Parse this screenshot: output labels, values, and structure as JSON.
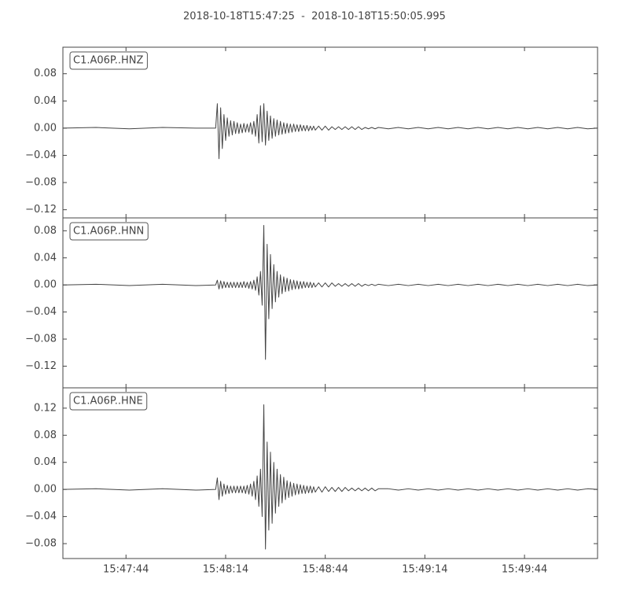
{
  "chart_data": [
    {
      "type": "line",
      "title": "2018-10-18T15:47:25  -  2018-10-18T15:50:05.995",
      "legend": "upper left",
      "x": [
        56845,
        56855,
        56865,
        56875,
        56885,
        56891,
        56891.5,
        56892,
        56892.5,
        56893,
        56893.5,
        56894,
        56894.5,
        56895,
        56895.5,
        56896,
        56896.5,
        56897,
        56897.5,
        56898,
        56898.5,
        56899,
        56899.5,
        56900,
        56900.5,
        56901,
        56901.5,
        56902,
        56902.5,
        56903,
        56903.5,
        56904,
        56904.5,
        56905,
        56905.5,
        56906,
        56906.5,
        56907,
        56907.5,
        56908,
        56908.5,
        56909,
        56909.5,
        56910,
        56910.5,
        56911,
        56911.5,
        56912,
        56912.5,
        56913,
        56913.5,
        56914,
        56914.5,
        56915,
        56915.5,
        56916,
        56916.5,
        56917,
        56917.5,
        56918,
        56918.5,
        56919,
        56919.5,
        56920,
        56920.5,
        56921,
        56922,
        56923,
        56924,
        56925,
        56926,
        56927,
        56928,
        56929,
        56930,
        56931,
        56932,
        56933,
        56934,
        56935,
        56936,
        56937,
        56938,
        56939,
        56940,
        56943,
        56946,
        56949,
        56952,
        56955,
        56958,
        56961,
        56964,
        56967,
        56970,
        56973,
        56976,
        56979,
        56982,
        56985,
        56988,
        56991,
        56994,
        56997,
        57000,
        57003,
        57005.995
      ],
      "series": [
        {
          "name": "C1.A06P..HNZ",
          "color": "#444444",
          "values": [
            0,
            0.001,
            -0.001,
            0.001,
            0,
            0,
            0.036,
            -0.045,
            0.03,
            -0.03,
            0.02,
            -0.018,
            0.015,
            -0.012,
            0.011,
            -0.01,
            0.01,
            -0.008,
            0.008,
            -0.008,
            0.006,
            -0.007,
            0.007,
            -0.006,
            0.006,
            -0.006,
            0.008,
            -0.009,
            0.01,
            -0.012,
            0.02,
            -0.022,
            0.033,
            -0.02,
            0.036,
            -0.025,
            0.025,
            -0.018,
            0.018,
            -0.015,
            0.014,
            -0.012,
            0.012,
            -0.01,
            0.01,
            -0.009,
            0.008,
            -0.008,
            0.007,
            -0.007,
            0.006,
            -0.006,
            0.006,
            -0.005,
            0.005,
            -0.005,
            0.005,
            -0.004,
            0.004,
            -0.004,
            0.004,
            -0.004,
            0.003,
            -0.003,
            0.003,
            -0.003,
            0.003,
            -0.003,
            0.003,
            -0.003,
            0.002,
            -0.002,
            0.002,
            -0.002,
            0.002,
            -0.002,
            0.002,
            -0.002,
            0.002,
            -0.002,
            0.001,
            -0.001,
            0.001,
            -0.001,
            0.001,
            -0.001,
            0.001,
            -0.001,
            0.001,
            -0.001,
            0.001,
            -0.001,
            0.001,
            -0.001,
            0.001,
            -0.001,
            0.001,
            -0.001,
            0.001,
            -0.001,
            0.001,
            -0.001,
            0.001,
            -0.001,
            0.001,
            -0.001,
            0
          ]
        }
      ],
      "xlim": [
        56845,
        57005.995
      ],
      "ylim": [
        -0.132,
        0.119
      ],
      "yticks": [
        {
          "value": -0.12,
          "label": "−0.12"
        },
        {
          "value": -0.08,
          "label": "−0.08"
        },
        {
          "value": -0.04,
          "label": "−0.04"
        },
        {
          "value": 0,
          "label": "0.00"
        },
        0.04,
        0.08
      ]
    },
    {
      "type": "line",
      "legend": "upper left",
      "x": [
        56845,
        56855,
        56865,
        56875,
        56885,
        56891,
        56891.5,
        56892,
        56892.5,
        56893,
        56893.5,
        56894,
        56894.5,
        56895,
        56895.5,
        56896,
        56896.5,
        56897,
        56897.5,
        56898,
        56898.5,
        56899,
        56899.5,
        56900,
        56900.5,
        56901,
        56901.5,
        56902,
        56902.5,
        56903,
        56903.5,
        56904,
        56904.5,
        56905,
        56905.5,
        56906,
        56906.5,
        56907,
        56907.5,
        56908,
        56908.5,
        56909,
        56909.5,
        56910,
        56910.5,
        56911,
        56911.5,
        56912,
        56912.5,
        56913,
        56913.5,
        56914,
        56914.5,
        56915,
        56915.5,
        56916,
        56916.5,
        56917,
        56917.5,
        56918,
        56918.5,
        56919,
        56919.5,
        56920,
        56920.5,
        56921,
        56922,
        56923,
        56924,
        56925,
        56926,
        56927,
        56928,
        56929,
        56930,
        56931,
        56932,
        56933,
        56934,
        56935,
        56936,
        56937,
        56938,
        56939,
        56940,
        56943,
        56946,
        56949,
        56952,
        56955,
        56958,
        56961,
        56964,
        56967,
        56970,
        56973,
        56976,
        56979,
        56982,
        56985,
        56988,
        56991,
        56994,
        56997,
        57000,
        57003,
        57005.995
      ],
      "series": [
        {
          "name": "C1.A06P..HNN",
          "color": "#444444",
          "values": [
            0,
            0.001,
            -0.001,
            0.001,
            -0.001,
            0,
            0.007,
            -0.006,
            0.006,
            -0.005,
            0.005,
            -0.004,
            0.004,
            -0.004,
            0.004,
            -0.004,
            0.004,
            -0.004,
            0.004,
            -0.004,
            0.004,
            -0.004,
            0.005,
            -0.004,
            0.004,
            -0.005,
            0.005,
            -0.006,
            0.007,
            -0.008,
            0.012,
            -0.015,
            0.02,
            -0.03,
            0.088,
            -0.11,
            0.06,
            -0.05,
            0.045,
            -0.035,
            0.03,
            -0.025,
            0.02,
            -0.018,
            0.015,
            -0.013,
            0.012,
            -0.01,
            0.01,
            -0.009,
            0.008,
            -0.007,
            0.007,
            -0.006,
            0.006,
            -0.006,
            0.005,
            -0.005,
            0.005,
            -0.004,
            0.004,
            -0.004,
            0.004,
            -0.004,
            0.003,
            -0.003,
            0.003,
            -0.003,
            0.003,
            -0.003,
            0.003,
            -0.002,
            0.002,
            -0.002,
            0.002,
            -0.002,
            0.002,
            -0.002,
            0.002,
            -0.002,
            0.001,
            -0.001,
            0.001,
            -0.001,
            0.001,
            -0.001,
            0.001,
            -0.001,
            0.001,
            -0.001,
            0.001,
            -0.001,
            0.001,
            -0.001,
            0.001,
            -0.001,
            0.001,
            -0.001,
            0.001,
            -0.001,
            0.001,
            -0.001,
            0.001,
            -0.001,
            0.001,
            -0.001,
            0
          ]
        }
      ],
      "xlim": [
        56845,
        57005.995
      ],
      "ylim": [
        -0.152,
        0.099
      ],
      "yticks": [
        {
          "value": -0.12,
          "label": "−0.12"
        },
        {
          "value": -0.08,
          "label": "−0.08"
        },
        {
          "value": -0.04,
          "label": "−0.04"
        },
        {
          "value": 0,
          "label": "0.00"
        },
        0.04,
        0.08
      ]
    },
    {
      "type": "line",
      "legend": "upper left",
      "x": [
        56845,
        56855,
        56865,
        56875,
        56885,
        56891,
        56891.5,
        56892,
        56892.5,
        56893,
        56893.5,
        56894,
        56894.5,
        56895,
        56895.5,
        56896,
        56896.5,
        56897,
        56897.5,
        56898,
        56898.5,
        56899,
        56899.5,
        56900,
        56900.5,
        56901,
        56901.5,
        56902,
        56902.5,
        56903,
        56903.5,
        56904,
        56904.5,
        56905,
        56905.5,
        56906,
        56906.5,
        56907,
        56907.5,
        56908,
        56908.5,
        56909,
        56909.5,
        56910,
        56910.5,
        56911,
        56911.5,
        56912,
        56912.5,
        56913,
        56913.5,
        56914,
        56914.5,
        56915,
        56915.5,
        56916,
        56916.5,
        56917,
        56917.5,
        56918,
        56918.5,
        56919,
        56919.5,
        56920,
        56920.5,
        56921,
        56922,
        56923,
        56924,
        56925,
        56926,
        56927,
        56928,
        56929,
        56930,
        56931,
        56932,
        56933,
        56934,
        56935,
        56936,
        56937,
        56938,
        56939,
        56940,
        56943,
        56946,
        56949,
        56952,
        56955,
        56958,
        56961,
        56964,
        56967,
        56970,
        56973,
        56976,
        56979,
        56982,
        56985,
        56988,
        56991,
        56994,
        56997,
        57000,
        57003,
        57005.995
      ],
      "series": [
        {
          "name": "C1.A06P..HNE",
          "color": "#444444",
          "values": [
            0,
            0.001,
            -0.001,
            0.001,
            -0.001,
            0,
            0.017,
            -0.015,
            0.012,
            -0.01,
            0.008,
            -0.007,
            0.006,
            -0.006,
            0.005,
            -0.005,
            0.005,
            -0.005,
            0.005,
            -0.005,
            0.005,
            -0.005,
            0.005,
            -0.006,
            0.006,
            -0.007,
            0.008,
            -0.01,
            0.012,
            -0.015,
            0.02,
            -0.025,
            0.03,
            -0.04,
            0.125,
            -0.088,
            0.07,
            -0.06,
            0.055,
            -0.05,
            0.04,
            -0.035,
            0.03,
            -0.025,
            0.022,
            -0.02,
            0.018,
            -0.015,
            0.013,
            -0.012,
            0.011,
            -0.01,
            0.009,
            -0.008,
            0.008,
            -0.007,
            0.007,
            -0.006,
            0.006,
            -0.006,
            0.005,
            -0.005,
            0.005,
            -0.005,
            0.004,
            -0.004,
            0.004,
            -0.004,
            0.004,
            -0.003,
            0.003,
            -0.003,
            0.003,
            -0.003,
            0.003,
            -0.002,
            0.002,
            -0.002,
            0.002,
            -0.002,
            0.002,
            -0.002,
            0.002,
            -0.002,
            0.001,
            0.001,
            -0.001,
            0.001,
            -0.001,
            0.001,
            -0.001,
            0.001,
            -0.001,
            0.001,
            -0.001,
            0.001,
            -0.001,
            0.001,
            -0.001,
            0.001,
            -0.001,
            0.001,
            -0.001,
            0.001,
            -0.001,
            0.001,
            0
          ]
        }
      ],
      "xlim": [
        56845,
        57005.995
      ],
      "ylim": [
        -0.102,
        0.15
      ],
      "yticks": [
        {
          "value": -0.08,
          "label": "−0.08"
        },
        {
          "value": -0.04,
          "label": "−0.04"
        },
        {
          "value": 0,
          "label": "0.00"
        },
        0.04,
        0.08,
        0.12
      ],
      "xticks": [
        {
          "value": 56864,
          "label": "15:47:44"
        },
        {
          "value": 56894,
          "label": "15:48:14"
        },
        {
          "value": 56924,
          "label": "15:48:44"
        },
        {
          "value": 56954,
          "label": "15:49:14"
        },
        {
          "value": 56984,
          "label": "15:49:44"
        }
      ]
    }
  ]
}
